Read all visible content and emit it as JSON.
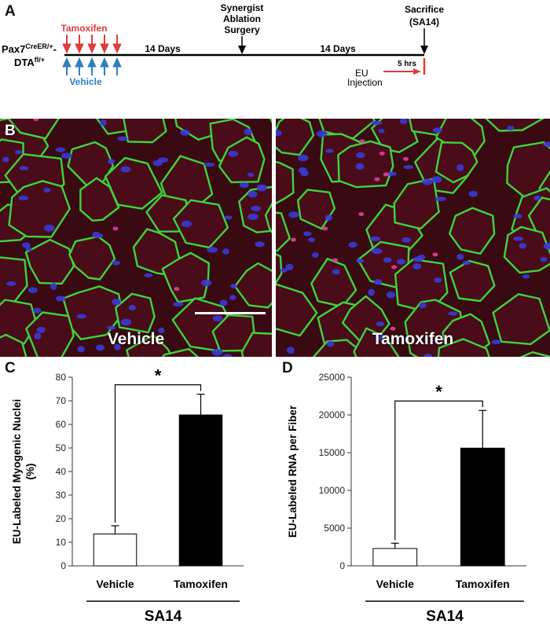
{
  "panels": {
    "a": "A",
    "b": "B",
    "c": "C",
    "d": "D"
  },
  "timeline": {
    "genotype_line1": "Pax7",
    "genotype_sup1": "CreER/+",
    "genotype_dash": "-",
    "genotype_line2": "DTA",
    "genotype_sup2": "fl/+",
    "tamoxifen": "Tamoxifen",
    "vehicle": "Vehicle",
    "interval1": "14 Days",
    "interval2": "14 Days",
    "surgery": [
      "Synergist",
      "Ablation",
      "Surgery"
    ],
    "sacrifice": [
      "Sacrifice",
      "(SA14)"
    ],
    "eu": [
      "EU",
      "Injection"
    ],
    "eu_duration": "5 hrs",
    "colors": {
      "tamoxifen": "#e03a3e",
      "vehicle": "#2e7fc0",
      "eu_arrow": "#e03a3e"
    }
  },
  "micrographs": {
    "left_label": "Vehicle",
    "right_label": "Tamoxifen",
    "colors": {
      "membrane": "#3cd63c",
      "nuclei": "#3a3ad8",
      "eu": "#e0409a",
      "fiber": "#3a0a12"
    }
  },
  "chart_data": [
    {
      "type": "bar",
      "ylabel": "EU-Labeled Myogenic Nuclei (%)",
      "ylabel_lines": [
        "EU-Labeled Myogenic Nuclei",
        "(%)"
      ],
      "categories": [
        "Vehicle",
        "Tamoxifen"
      ],
      "values": [
        13.5,
        64
      ],
      "errors": [
        3.5,
        8.8
      ],
      "bar_colors": [
        "#ffffff",
        "#000000"
      ],
      "ylim": [
        0,
        80
      ],
      "yticks": [
        0,
        10,
        20,
        30,
        40,
        50,
        60,
        70,
        80
      ],
      "significance": "*",
      "group_label": "SA14"
    },
    {
      "type": "bar",
      "ylabel": "EU-Labeled RNA per Fiber",
      "ylabel_lines": [
        "EU-Labeled RNA per Fiber"
      ],
      "categories": [
        "Vehicle",
        "Tamoxifen"
      ],
      "values": [
        2300,
        15600
      ],
      "errors": [
        700,
        5000
      ],
      "bar_colors": [
        "#ffffff",
        "#000000"
      ],
      "ylim": [
        0,
        25000
      ],
      "yticks": [
        0,
        5000,
        10000,
        15000,
        20000,
        25000
      ],
      "significance": "*",
      "group_label": "SA14"
    }
  ]
}
